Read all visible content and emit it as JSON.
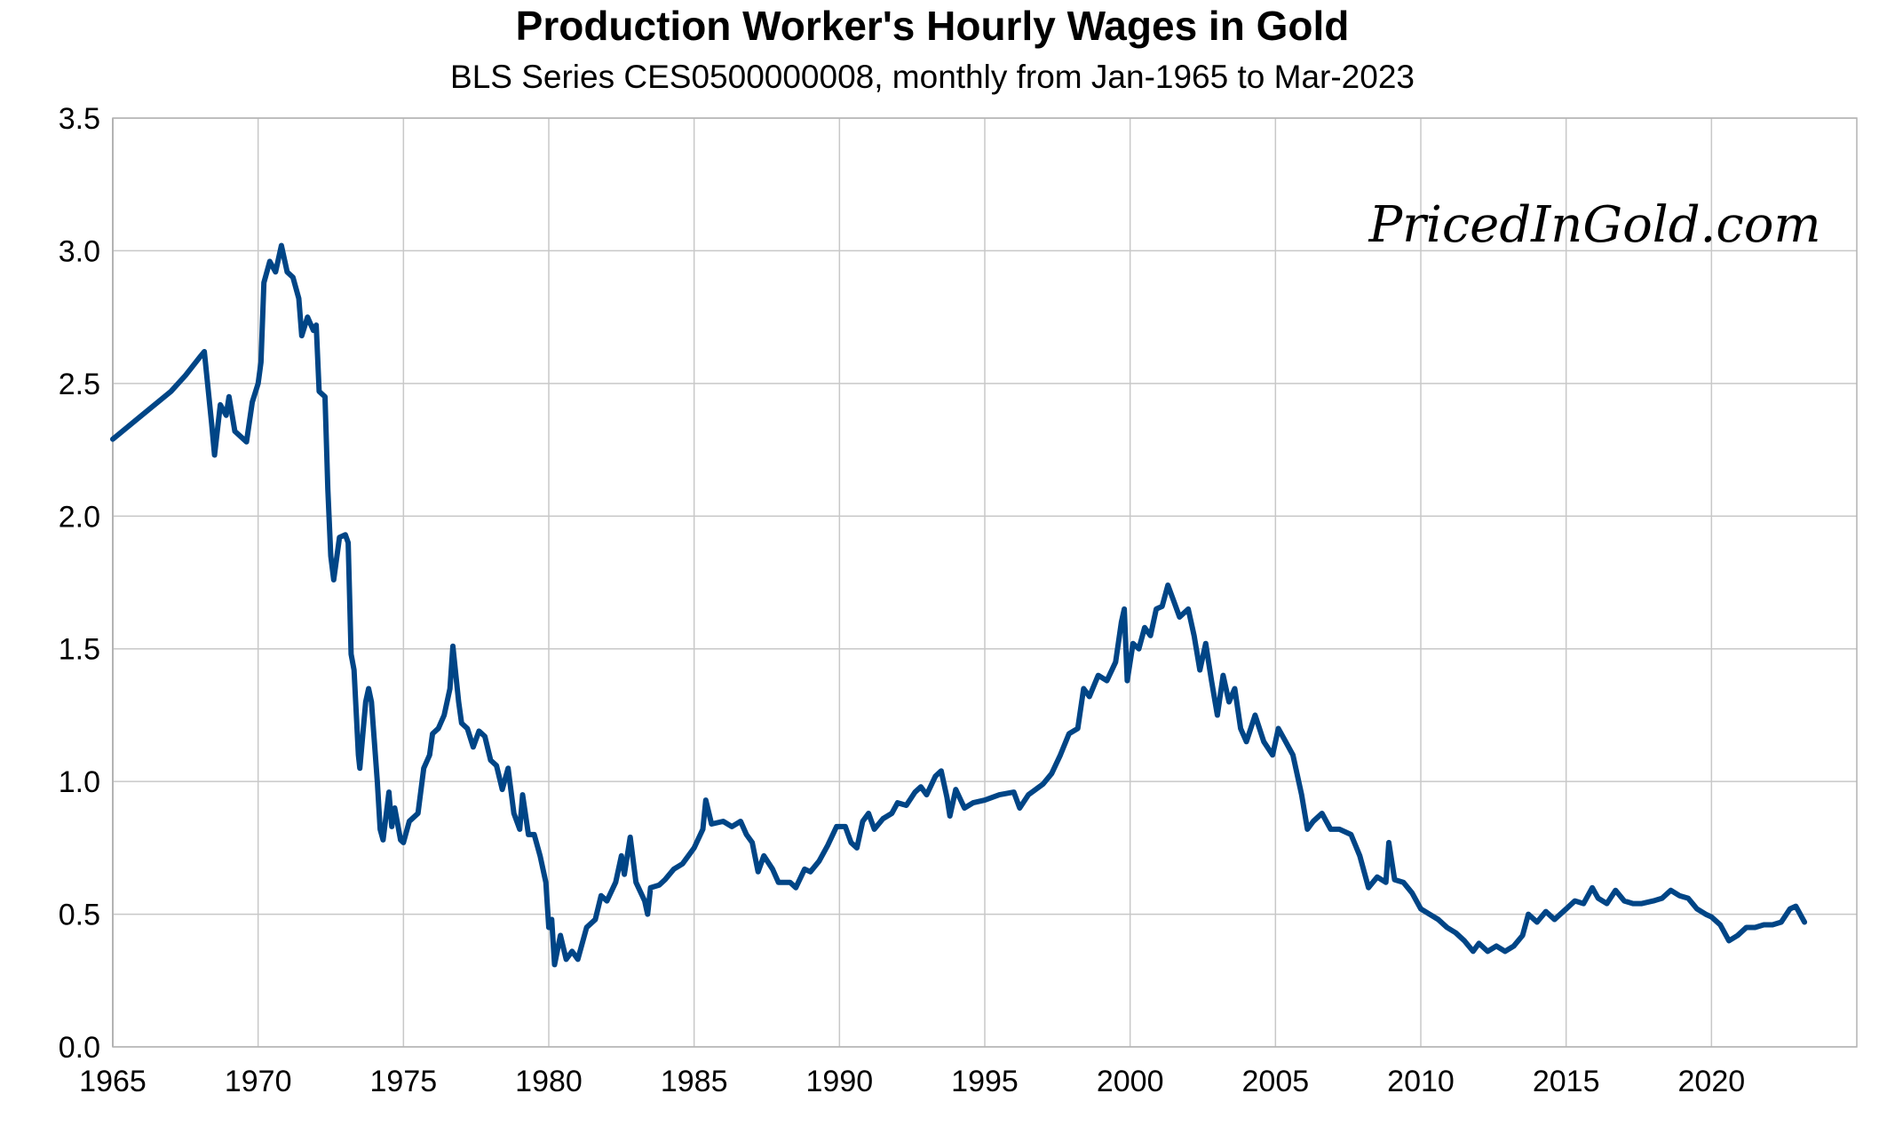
{
  "chart_data": {
    "type": "line",
    "title": "Production Worker's Hourly Wages in Gold",
    "subtitle": "BLS Series CES0500000008, monthly from Jan-1965 to Mar-2023",
    "annotation": "PricedInGold.com",
    "color": "#004586",
    "grid": true,
    "xlim": [
      1965,
      2025
    ],
    "xticks": [
      1965,
      1970,
      1975,
      1980,
      1985,
      1990,
      1995,
      2000,
      2005,
      2010,
      2015,
      2020
    ],
    "ylim": [
      0,
      3.5
    ],
    "yticks": [
      {
        "value": 0,
        "label": "0.0"
      },
      0.5,
      {
        "value": 1,
        "label": "1.0"
      },
      1.5,
      {
        "value": 2,
        "label": "2.0"
      },
      2.5,
      {
        "value": 3,
        "label": "3.0"
      },
      3.5
    ],
    "x": [
      1965.0,
      1966,
      1967,
      1967.5,
      1968.0,
      1968.15,
      1968.4,
      1968.5,
      1968.7,
      1968.9,
      1969.0,
      1969.2,
      1969.5,
      1969.6,
      1969.8,
      1970.0,
      1970.1,
      1970.2,
      1970.4,
      1970.6,
      1970.8,
      1971.0,
      1971.2,
      1971.4,
      1971.5,
      1971.7,
      1971.9,
      1972.0,
      1972.1,
      1972.3,
      1972.4,
      1972.5,
      1972.6,
      1972.8,
      1973.0,
      1973.1,
      1973.2,
      1973.3,
      1973.45,
      1973.5,
      1973.7,
      1973.8,
      1973.9,
      1974.1,
      1974.2,
      1974.3,
      1974.5,
      1974.6,
      1974.7,
      1974.9,
      1975.0,
      1975.2,
      1975.5,
      1975.7,
      1975.9,
      1976.0,
      1976.2,
      1976.4,
      1976.6,
      1976.7,
      1976.9,
      1977.0,
      1977.2,
      1977.4,
      1977.6,
      1977.8,
      1978.0,
      1978.2,
      1978.4,
      1978.6,
      1978.8,
      1979.0,
      1979.1,
      1979.3,
      1979.5,
      1979.7,
      1979.9,
      1980.0,
      1980.1,
      1980.2,
      1980.4,
      1980.6,
      1980.8,
      1981.0,
      1981.3,
      1981.6,
      1981.8,
      1982.0,
      1982.3,
      1982.5,
      1982.6,
      1982.8,
      1983.0,
      1983.3,
      1983.4,
      1983.5,
      1983.8,
      1984.0,
      1984.3,
      1984.6,
      1985.0,
      1985.3,
      1985.4,
      1985.6,
      1986.0,
      1986.3,
      1986.6,
      1986.8,
      1987.0,
      1987.2,
      1987.4,
      1987.7,
      1987.9,
      1988.3,
      1988.5,
      1988.8,
      1989.0,
      1989.3,
      1989.6,
      1989.9,
      1990.2,
      1990.4,
      1990.6,
      1990.8,
      1991.0,
      1991.2,
      1991.5,
      1991.8,
      1992.0,
      1992.3,
      1992.6,
      1992.8,
      1993.0,
      1993.3,
      1993.5,
      1993.7,
      1993.8,
      1994.0,
      1994.3,
      1994.6,
      1995.0,
      1995.5,
      1996.0,
      1996.2,
      1996.5,
      1997.0,
      1997.3,
      1997.6,
      1997.9,
      1998.2,
      1998.4,
      1998.6,
      1998.9,
      1999.2,
      1999.5,
      1999.7,
      1999.8,
      1999.9,
      2000.1,
      2000.3,
      2000.5,
      2000.7,
      2000.9,
      2001.1,
      2001.3,
      2001.5,
      2001.7,
      2002.0,
      2002.2,
      2002.4,
      2002.6,
      2002.8,
      2003.0,
      2003.2,
      2003.4,
      2003.6,
      2003.8,
      2004.0,
      2004.3,
      2004.6,
      2004.9,
      2005.1,
      2005.3,
      2005.6,
      2005.9,
      2006.1,
      2006.3,
      2006.6,
      2006.9,
      2007.2,
      2007.6,
      2007.9,
      2008.2,
      2008.5,
      2008.8,
      2008.9,
      2009.1,
      2009.4,
      2009.7,
      2010.0,
      2010.3,
      2010.6,
      2010.9,
      2011.2,
      2011.5,
      2011.8,
      2012.0,
      2012.3,
      2012.6,
      2012.9,
      2013.2,
      2013.5,
      2013.7,
      2014.0,
      2014.3,
      2014.6,
      2015.0,
      2015.3,
      2015.6,
      2015.9,
      2016.1,
      2016.4,
      2016.7,
      2017.0,
      2017.3,
      2017.6,
      2018.0,
      2018.3,
      2018.6,
      2018.9,
      2019.2,
      2019.5,
      2019.8,
      2020.0,
      2020.3,
      2020.6,
      2020.9,
      2021.2,
      2021.5,
      2021.8,
      2022.1,
      2022.4,
      2022.7,
      2022.9,
      2023.2
    ],
    "values": [
      2.29,
      2.38,
      2.47,
      2.53,
      2.6,
      2.62,
      2.35,
      2.23,
      2.42,
      2.38,
      2.45,
      2.32,
      2.29,
      2.28,
      2.43,
      2.5,
      2.58,
      2.88,
      2.96,
      2.92,
      3.02,
      2.92,
      2.9,
      2.82,
      2.68,
      2.75,
      2.7,
      2.72,
      2.47,
      2.45,
      2.1,
      1.85,
      1.76,
      1.92,
      1.93,
      1.9,
      1.48,
      1.42,
      1.1,
      1.05,
      1.3,
      1.35,
      1.3,
      1.0,
      0.82,
      0.78,
      0.96,
      0.83,
      0.9,
      0.78,
      0.77,
      0.85,
      0.88,
      1.05,
      1.1,
      1.18,
      1.2,
      1.25,
      1.35,
      1.51,
      1.3,
      1.22,
      1.2,
      1.13,
      1.19,
      1.17,
      1.08,
      1.06,
      0.97,
      1.05,
      0.88,
      0.82,
      0.95,
      0.8,
      0.8,
      0.72,
      0.62,
      0.45,
      0.48,
      0.31,
      0.42,
      0.33,
      0.36,
      0.33,
      0.45,
      0.48,
      0.57,
      0.55,
      0.62,
      0.72,
      0.65,
      0.79,
      0.62,
      0.55,
      0.5,
      0.6,
      0.61,
      0.63,
      0.67,
      0.69,
      0.75,
      0.82,
      0.93,
      0.84,
      0.85,
      0.83,
      0.85,
      0.8,
      0.77,
      0.66,
      0.72,
      0.67,
      0.62,
      0.62,
      0.6,
      0.67,
      0.66,
      0.7,
      0.76,
      0.83,
      0.83,
      0.77,
      0.75,
      0.85,
      0.88,
      0.82,
      0.86,
      0.88,
      0.92,
      0.91,
      0.96,
      0.98,
      0.95,
      1.02,
      1.04,
      0.94,
      0.87,
      0.97,
      0.9,
      0.92,
      0.93,
      0.95,
      0.96,
      0.9,
      0.95,
      0.99,
      1.03,
      1.1,
      1.18,
      1.2,
      1.35,
      1.32,
      1.4,
      1.38,
      1.45,
      1.6,
      1.65,
      1.38,
      1.52,
      1.5,
      1.58,
      1.55,
      1.65,
      1.66,
      1.74,
      1.68,
      1.62,
      1.65,
      1.55,
      1.42,
      1.52,
      1.38,
      1.25,
      1.4,
      1.3,
      1.35,
      1.2,
      1.15,
      1.25,
      1.15,
      1.1,
      1.2,
      1.16,
      1.1,
      0.95,
      0.82,
      0.85,
      0.88,
      0.82,
      0.82,
      0.8,
      0.72,
      0.6,
      0.64,
      0.62,
      0.77,
      0.63,
      0.62,
      0.58,
      0.52,
      0.5,
      0.48,
      0.45,
      0.43,
      0.4,
      0.36,
      0.39,
      0.36,
      0.38,
      0.36,
      0.38,
      0.42,
      0.5,
      0.47,
      0.51,
      0.48,
      0.52,
      0.55,
      0.54,
      0.6,
      0.56,
      0.54,
      0.59,
      0.55,
      0.54,
      0.54,
      0.55,
      0.56,
      0.59,
      0.57,
      0.56,
      0.52,
      0.5,
      0.49,
      0.46,
      0.4,
      0.42,
      0.45,
      0.45,
      0.46,
      0.46,
      0.47,
      0.52,
      0.53,
      0.47
    ]
  }
}
